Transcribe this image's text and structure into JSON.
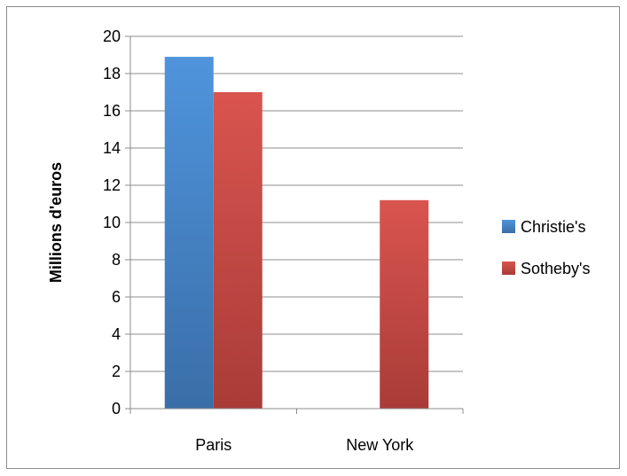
{
  "chart_data": {
    "type": "bar",
    "categories": [
      "Paris",
      "New York"
    ],
    "series": [
      {
        "name": "Christie's",
        "values": [
          18.9,
          null
        ],
        "color": "#4a7ebb"
      },
      {
        "name": "Sotheby's",
        "values": [
          17.0,
          11.2
        ],
        "color": "#c0504d"
      }
    ],
    "title": "",
    "xlabel": "",
    "ylabel": "Millions d'euros",
    "ylim": [
      0,
      20
    ],
    "yticks": [
      0,
      2,
      4,
      6,
      8,
      10,
      12,
      14,
      16,
      18,
      20
    ],
    "grid": true,
    "legend_position": "right"
  }
}
